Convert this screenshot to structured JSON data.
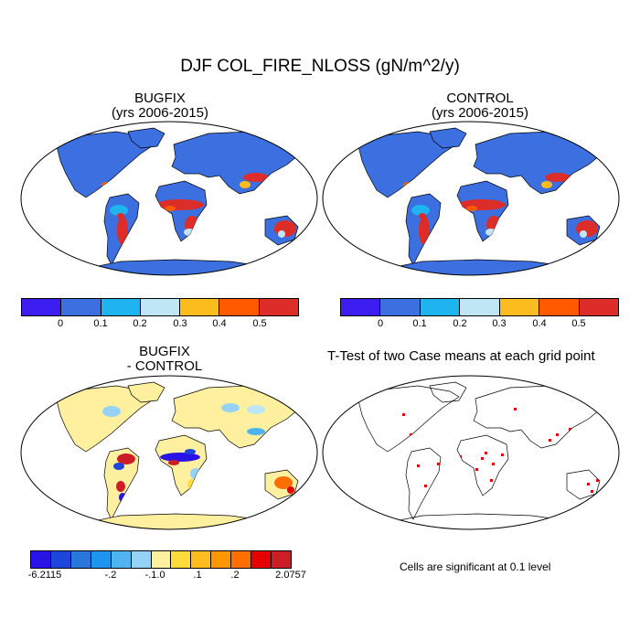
{
  "title": "DJF COL_FIRE_NLOSS (gN/m^2/y)",
  "panels": {
    "bugfix": {
      "title_line1": "BUGFIX",
      "title_line2": "(yrs 2006-2015)"
    },
    "control": {
      "title_line1": "CONTROL",
      "title_line2": "(yrs 2006-2015)"
    },
    "diff": {
      "title_line1": "BUGFIX",
      "title_line2": "- CONTROL"
    },
    "ttest": {
      "title": "T-Test of two Case means at each grid point",
      "note": "Cells are significant at 0.1 level"
    }
  },
  "colors": {
    "ocean": "#ffffff",
    "land_base": "#3c6fe0",
    "diff_base": "#fff0a0",
    "sig": "#e00000"
  },
  "chart_data": [
    {
      "type": "heatmap",
      "name": "BUGFIX",
      "colorbar": {
        "colors": [
          "#3c1ef0",
          "#3c6fe0",
          "#1eb4f0",
          "#bfe6f5",
          "#fdbc1e",
          "#ff5a00",
          "#dc2d28"
        ],
        "tick_labels": [
          "0",
          "0.1",
          "0.2",
          "0.3",
          "0.4",
          "0.5"
        ]
      }
    },
    {
      "type": "heatmap",
      "name": "CONTROL",
      "colorbar": {
        "colors": [
          "#3c1ef0",
          "#3c6fe0",
          "#1eb4f0",
          "#bfe6f5",
          "#fdbc1e",
          "#ff5a00",
          "#dc2d28"
        ],
        "tick_labels": [
          "0",
          "0.1",
          "0.2",
          "0.3",
          "0.4",
          "0.5"
        ]
      }
    },
    {
      "type": "heatmap",
      "name": "BUGFIX - CONTROL",
      "colorbar": {
        "colors": [
          "#2814e6",
          "#1e46dc",
          "#2878dc",
          "#1e96f0",
          "#50b4f0",
          "#96d2f5",
          "#fff0a0",
          "#ffdc3c",
          "#ffbe1e",
          "#ff9600",
          "#ff6e00",
          "#e60000",
          "#cd1e28"
        ],
        "tick_labels": [
          "-6.2115",
          "-.2",
          "-.1",
          ".0",
          ".1",
          ".2",
          "2.0757"
        ]
      }
    },
    {
      "type": "heatmap",
      "name": "T-Test",
      "note": "Cells are significant at 0.1 level"
    }
  ]
}
